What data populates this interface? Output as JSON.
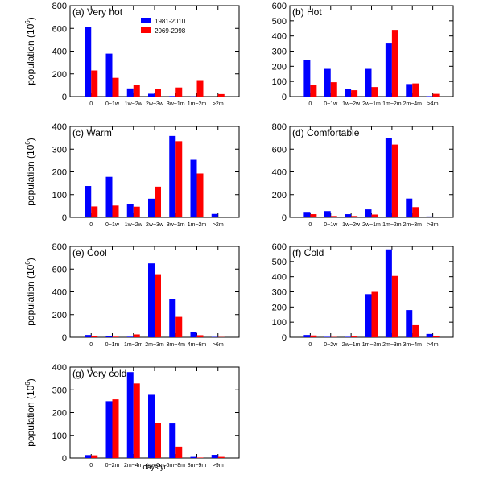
{
  "colors": {
    "series_1981_2010": "#0000ff",
    "series_2069_2098": "#ff0000"
  },
  "legend": {
    "items": [
      "1981-2010",
      "2069-2098"
    ],
    "placement": "top-center of panel a"
  },
  "xlabel": "days/yr",
  "ylabel_prefix": "population (10",
  "ylabel_exponent": "6",
  "ylabel_suffix": ")",
  "chart_data": [
    {
      "type": "bar",
      "title": "(a) Very hot",
      "ylim": [
        0,
        800
      ],
      "yticks": [
        0,
        200,
        400,
        600,
        800
      ],
      "categories": [
        "0",
        "0~1w",
        "1w~2w",
        "2w~3w",
        "3w~1m",
        "1m~2m",
        ">2m"
      ],
      "series": [
        {
          "name": "1981-2010",
          "values": [
            615,
            378,
            72,
            25,
            5,
            2,
            0
          ]
        },
        {
          "name": "2069-2098",
          "values": [
            230,
            165,
            105,
            68,
            80,
            145,
            22
          ]
        }
      ]
    },
    {
      "type": "bar",
      "title": "(b) Hot",
      "ylim": [
        0,
        600
      ],
      "yticks": [
        0,
        100,
        200,
        300,
        400,
        500,
        600
      ],
      "categories": [
        "0",
        "0~1w",
        "1w~2w",
        "2w~1m",
        "1m~2m",
        "2m~4m",
        ">4m"
      ],
      "series": [
        {
          "name": "1981-2010",
          "values": [
            243,
            183,
            50,
            183,
            350,
            83,
            3
          ]
        },
        {
          "name": "2069-2098",
          "values": [
            75,
            95,
            42,
            63,
            440,
            87,
            18
          ]
        }
      ]
    },
    {
      "type": "bar",
      "title": "(c) Warm",
      "ylim": [
        0,
        400
      ],
      "yticks": [
        0,
        100,
        200,
        300,
        400
      ],
      "categories": [
        "0",
        "0~1w",
        "1w~2w",
        "2w~3w",
        "3w~1m",
        "1m~2m",
        ">2m"
      ],
      "series": [
        {
          "name": "1981-2010",
          "values": [
            138,
            178,
            58,
            82,
            358,
            253,
            15
          ]
        },
        {
          "name": "2069-2098",
          "values": [
            48,
            52,
            47,
            135,
            335,
            193,
            0
          ]
        }
      ]
    },
    {
      "type": "bar",
      "title": "(d) Comfortable",
      "ylim": [
        0,
        800
      ],
      "yticks": [
        0,
        200,
        400,
        600,
        800
      ],
      "categories": [
        "0",
        "0~1w",
        "1w~2w",
        "2w~1m",
        "1m~2m",
        "2m~3m",
        ">3m"
      ],
      "series": [
        {
          "name": "1981-2010",
          "values": [
            48,
            55,
            28,
            70,
            700,
            165,
            8
          ]
        },
        {
          "name": "2069-2098",
          "values": [
            28,
            12,
            12,
            25,
            640,
            90,
            5
          ]
        }
      ]
    },
    {
      "type": "bar",
      "title": "(e) Cool",
      "ylim": [
        0,
        800
      ],
      "yticks": [
        0,
        200,
        400,
        600,
        800
      ],
      "categories": [
        "0",
        "0~1m",
        "1m~2m",
        "2m~3m",
        "3m~4m",
        "4m~6m",
        ">6m"
      ],
      "series": [
        {
          "name": "1981-2010",
          "values": [
            20,
            10,
            5,
            650,
            335,
            45,
            3
          ]
        },
        {
          "name": "2069-2098",
          "values": [
            12,
            5,
            25,
            555,
            180,
            18,
            2
          ]
        }
      ]
    },
    {
      "type": "bar",
      "title": "(f) Cold",
      "ylim": [
        0,
        600
      ],
      "yticks": [
        0,
        100,
        200,
        300,
        400,
        500,
        600
      ],
      "categories": [
        "0",
        "0~2w",
        "2w~1m",
        "1m~2m",
        "2m~3m",
        "3m~4m",
        ">4m"
      ],
      "series": [
        {
          "name": "1981-2010",
          "values": [
            15,
            3,
            3,
            285,
            580,
            180,
            22
          ]
        },
        {
          "name": "2069-2098",
          "values": [
            12,
            2,
            5,
            300,
            405,
            80,
            8
          ]
        }
      ]
    },
    {
      "type": "bar",
      "title": "(g) Very cold",
      "ylim": [
        0,
        400
      ],
      "yticks": [
        0,
        100,
        200,
        300,
        400
      ],
      "categories": [
        "0",
        "0~2m",
        "2m~4m",
        "4m~6m",
        "6m~8m",
        "8m~9m",
        ">9m"
      ],
      "series": [
        {
          "name": "1981-2010",
          "values": [
            13,
            250,
            378,
            278,
            152,
            5,
            14
          ]
        },
        {
          "name": "2069-2098",
          "values": [
            12,
            258,
            328,
            155,
            50,
            2,
            5
          ]
        }
      ]
    }
  ]
}
